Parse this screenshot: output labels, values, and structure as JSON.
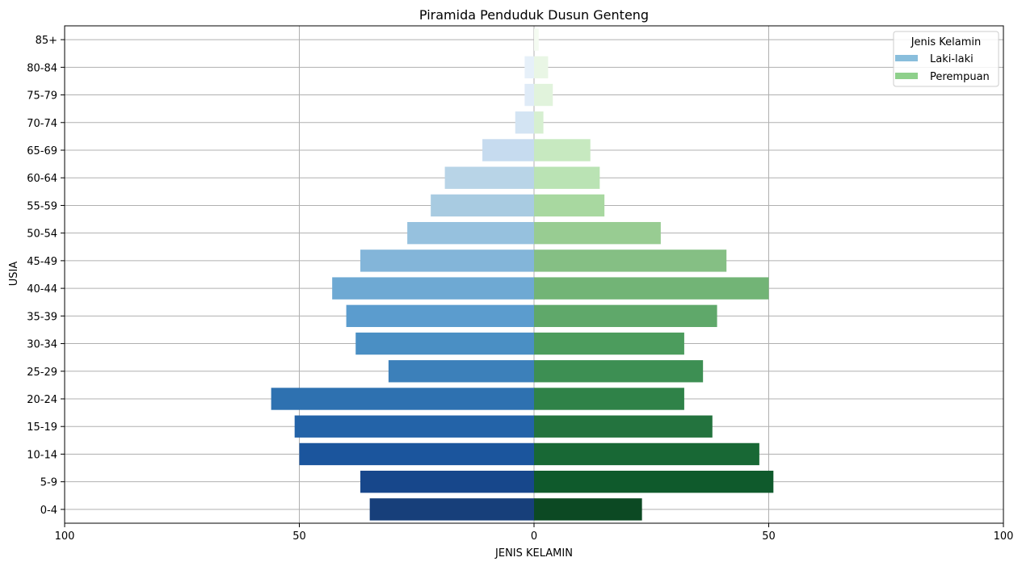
{
  "chart_data": {
    "type": "bar",
    "orientation": "horizontal-diverging",
    "title": "Piramida Penduduk Dusun Genteng",
    "xlabel": "JENIS KELAMIN",
    "ylabel": "USIA",
    "xlim": [
      -100,
      100
    ],
    "x_ticks": [
      {
        "value": -100,
        "label": "100"
      },
      {
        "value": -50,
        "label": "50"
      },
      {
        "value": 0,
        "label": "0"
      },
      {
        "value": 50,
        "label": "50"
      },
      {
        "value": 100,
        "label": "100"
      }
    ],
    "grid": true,
    "legend": {
      "title": "Jenis Kelamin",
      "placement": "top-right",
      "entries": [
        {
          "label": "Laki-laki",
          "color": "#89bedc"
        },
        {
          "label": "Perempuan",
          "color": "#8ed08b"
        }
      ]
    },
    "categories": [
      "85+",
      "80-84",
      "75-79",
      "70-74",
      "65-69",
      "60-64",
      "55-59",
      "50-54",
      "45-49",
      "40-44",
      "35-39",
      "30-34",
      "25-29",
      "20-24",
      "15-19",
      "10-14",
      "5-9",
      "0-4"
    ],
    "series": [
      {
        "name": "Laki-laki",
        "values": [
          0,
          -2,
          -2,
          -4,
          -11,
          -19,
          -22,
          -27,
          -37,
          -43,
          -40,
          -38,
          -31,
          -56,
          -51,
          -50,
          -37,
          -35
        ],
        "colors": [
          "#f7fbff",
          "#e6f0f9",
          "#dfebf7",
          "#d3e4f3",
          "#c6dbef",
          "#b8d4e7",
          "#a8cbe1",
          "#96c1de",
          "#83b5d9",
          "#6ea9d3",
          "#5b9cce",
          "#4a8fc4",
          "#3c80ba",
          "#2e71b0",
          "#2363a8",
          "#1b559d",
          "#17478b",
          "#173f7a"
        ]
      },
      {
        "name": "Perempuan",
        "values": [
          1,
          3,
          4,
          2,
          12,
          14,
          15,
          27,
          41,
          50,
          39,
          32,
          36,
          32,
          38,
          48,
          51,
          23
        ],
        "colors": [
          "#f4fbf1",
          "#e9f6e5",
          "#e1f3dc",
          "#d6efd0",
          "#c7e9c0",
          "#bae3b4",
          "#a8d8a0",
          "#98cc92",
          "#85bf84",
          "#72b476",
          "#5fa86a",
          "#4c9c5d",
          "#3d8f53",
          "#2f8248",
          "#23733e",
          "#186835",
          "#0f5a2c",
          "#0c4923"
        ]
      }
    ]
  }
}
